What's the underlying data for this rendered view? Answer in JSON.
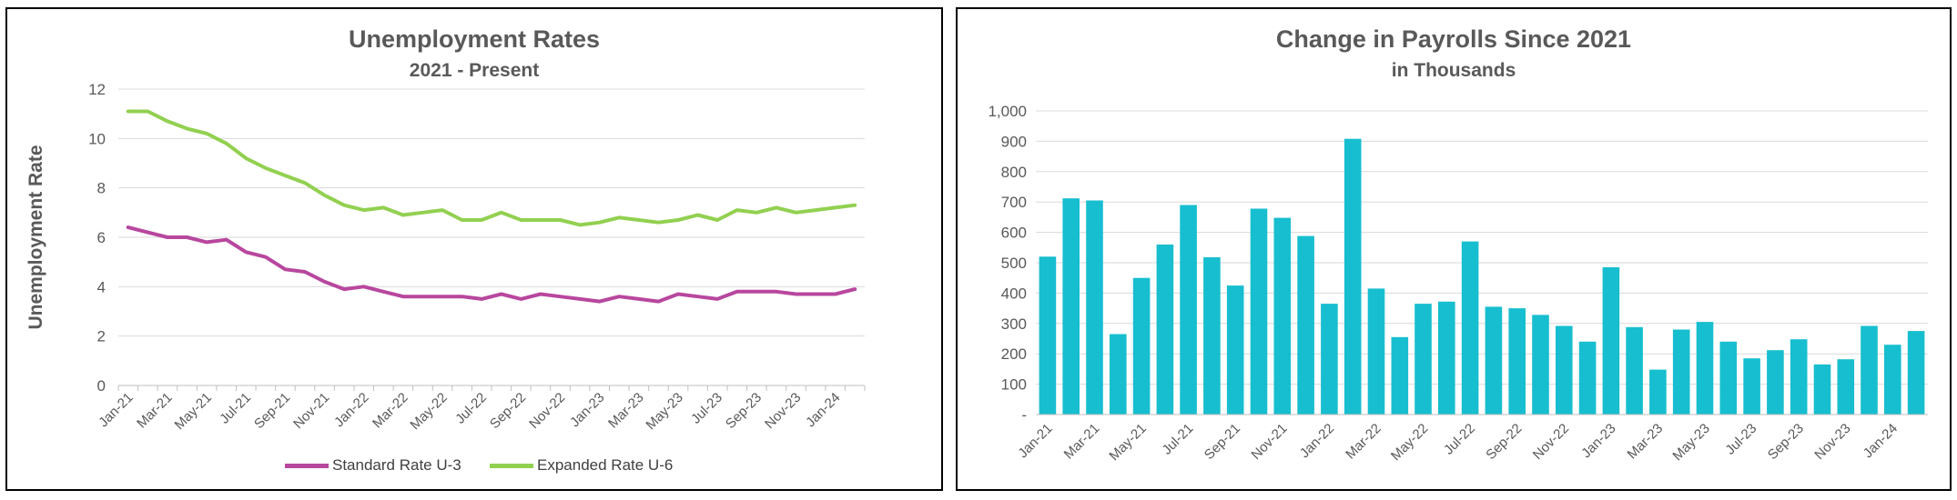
{
  "chart_data": [
    {
      "type": "line",
      "title": "Unemployment Rates",
      "subtitle": "2021 - Present",
      "ylabel": "Unemployment Rate",
      "ylim": [
        0,
        12
      ],
      "y_ticks": [
        "0",
        "2",
        "4",
        "6",
        "8",
        "10",
        "12"
      ],
      "x_tick_labels": [
        "Jan-21",
        "Mar-21",
        "May-21",
        "Jul-21",
        "Sep-21",
        "Nov-21",
        "Jan-22",
        "Mar-22",
        "May-22",
        "Jul-22",
        "Sep-22",
        "Nov-22",
        "Jan-23",
        "Mar-23",
        "May-23",
        "Jul-23",
        "Sep-23",
        "Nov-23",
        "Jan-24"
      ],
      "grid": "horizontal",
      "legend_position": "bottom",
      "series": [
        {
          "name": "Standard Rate U-3",
          "color": "#b8479e",
          "values": [
            6.4,
            6.2,
            6.0,
            6.0,
            5.8,
            5.9,
            5.4,
            5.2,
            4.7,
            4.6,
            4.2,
            3.9,
            4.0,
            3.8,
            3.6,
            3.6,
            3.6,
            3.6,
            3.5,
            3.7,
            3.5,
            3.7,
            3.6,
            3.5,
            3.4,
            3.6,
            3.5,
            3.4,
            3.7,
            3.6,
            3.5,
            3.8,
            3.8,
            3.8,
            3.7,
            3.7,
            3.7,
            3.9
          ]
        },
        {
          "name": "Expanded Rate U-6",
          "color": "#92d050",
          "values": [
            11.1,
            11.1,
            10.7,
            10.4,
            10.2,
            9.8,
            9.2,
            8.8,
            8.5,
            8.2,
            7.7,
            7.3,
            7.1,
            7.2,
            6.9,
            7.0,
            7.1,
            6.7,
            6.7,
            7.0,
            6.7,
            6.7,
            6.7,
            6.5,
            6.6,
            6.8,
            6.7,
            6.6,
            6.7,
            6.9,
            6.7,
            7.1,
            7.0,
            7.2,
            7.0,
            7.1,
            7.2,
            7.3
          ]
        }
      ]
    },
    {
      "type": "bar",
      "title": "Change in Payrolls Since 2021",
      "subtitle": "in Thousands",
      "ylim": [
        0,
        1000
      ],
      "y_ticks": [
        "-",
        "100",
        "200",
        "300",
        "400",
        "500",
        "600",
        "700",
        "800",
        "900",
        "1,000"
      ],
      "x_tick_labels": [
        "Jan-21",
        "Mar-21",
        "May-21",
        "Jul-21",
        "Sep-21",
        "Nov-21",
        "Jan-22",
        "Mar-22",
        "May-22",
        "Jul-22",
        "Sep-22",
        "Nov-22",
        "Jan-23",
        "Mar-23",
        "May-23",
        "Jul-23",
        "Sep-23",
        "Nov-23",
        "Jan-24"
      ],
      "grid": "horizontal",
      "series": [
        {
          "name": "",
          "color": "#17becf",
          "values": [
            520,
            712,
            705,
            265,
            450,
            560,
            690,
            518,
            425,
            678,
            648,
            588,
            365,
            908,
            415,
            255,
            365,
            372,
            570,
            355,
            350,
            328,
            292,
            240,
            485,
            288,
            148,
            280,
            305,
            240,
            185,
            212,
            248,
            165,
            182,
            292,
            230,
            275
          ]
        }
      ]
    }
  ]
}
